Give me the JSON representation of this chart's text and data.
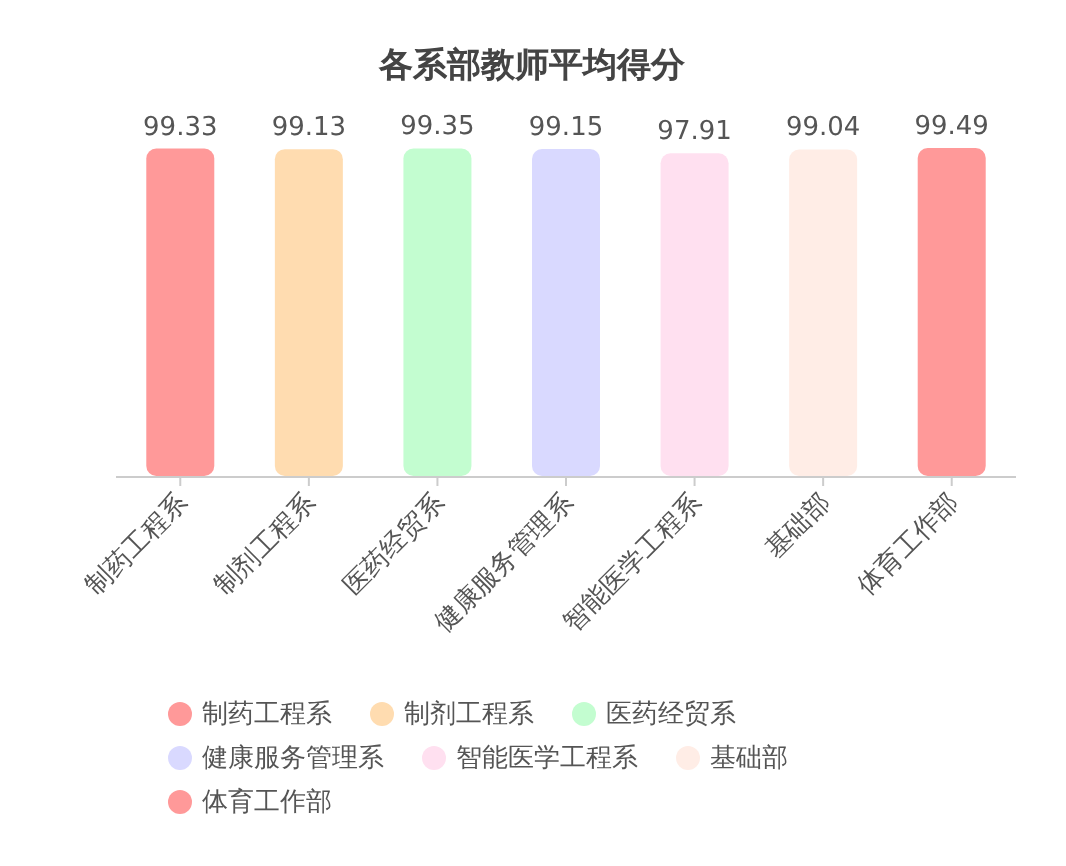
{
  "chart_data": {
    "type": "bar",
    "title": "各系部教师平均得分",
    "categories": [
      "制药工程系",
      "制剂工程系",
      "医药经贸系",
      "健康服务管理系",
      "智能医学工程系",
      "基础部",
      "体育工作部"
    ],
    "series": [
      {
        "name": "制药工程系",
        "color": "#ff9999",
        "values": [
          99.33,
          null,
          null,
          null,
          null,
          null,
          null
        ]
      },
      {
        "name": "制剂工程系",
        "color": "#ffdcb0",
        "values": [
          null,
          99.13,
          null,
          null,
          null,
          null,
          null
        ]
      },
      {
        "name": "医药经贸系",
        "color": "#c3fdd0",
        "values": [
          null,
          null,
          99.35,
          null,
          null,
          null,
          null
        ]
      },
      {
        "name": "健康服务管理系",
        "color": "#d9d9ff",
        "values": [
          null,
          null,
          null,
          99.15,
          null,
          null,
          null
        ]
      },
      {
        "name": "智能医学工程系",
        "color": "#ffe0f0",
        "values": [
          null,
          null,
          null,
          null,
          97.91,
          null,
          null
        ]
      },
      {
        "name": "基础部",
        "color": "#ffede6",
        "values": [
          null,
          null,
          null,
          null,
          null,
          99.04,
          null
        ]
      },
      {
        "name": "体育工作部",
        "color": "#ff9999",
        "values": [
          null,
          null,
          null,
          null,
          null,
          null,
          99.49
        ]
      }
    ],
    "stacked": true,
    "data_labels": true,
    "legend": "bottom"
  }
}
